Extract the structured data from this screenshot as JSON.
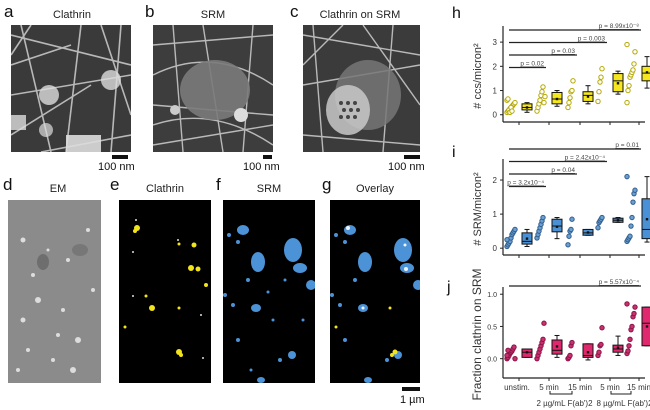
{
  "panels_top": [
    {
      "letter": "a",
      "title": "Clathrin",
      "scale": "100 nm"
    },
    {
      "letter": "b",
      "title": "SRM",
      "scale": "100 nm"
    },
    {
      "letter": "c",
      "title": "Clathrin on SRM",
      "scale": "100 nm"
    }
  ],
  "panels_bottom": [
    {
      "letter": "d",
      "title": "EM"
    },
    {
      "letter": "e",
      "title": "Clathrin"
    },
    {
      "letter": "f",
      "title": "SRM"
    },
    {
      "letter": "g",
      "title": "Overlay"
    }
  ],
  "bottom_scale": "1 µm",
  "colors": {
    "yellow": "#f5e61e",
    "blue": "#4a90d4",
    "pink": "#e0286e",
    "clathrin_overlay": "#f2e41a",
    "srm_overlay": "#4c92d6"
  },
  "x_axis": {
    "categories": [
      "unstim.",
      "5 min",
      "15 min",
      "5 min",
      "15 min"
    ],
    "groups": [
      {
        "label": "2 µg/mL F(ab')2"
      },
      {
        "label": "8 µg/mL F(ab')2"
      }
    ]
  },
  "chart_data": [
    {
      "panel": "h",
      "type": "box",
      "ylabel": "# ccs/micron²",
      "ylim": [
        -0.3,
        3.5
      ],
      "yticks": [
        "0",
        "1",
        "2",
        "3"
      ],
      "categories": [
        "unstim.",
        "5 min (2 µg/mL)",
        "15 min (2 µg/mL)",
        "5 min (8 µg/mL)",
        "15 min (8 µg/mL)"
      ],
      "boxes": [
        {
          "q1": 0.2,
          "median": 0.3,
          "q3": 0.45,
          "min": 0.1,
          "max": 0.5,
          "mean": 0.3
        },
        {
          "q1": 0.45,
          "median": 0.65,
          "q3": 0.92,
          "min": 0.35,
          "max": 1.0,
          "mean": 0.65
        },
        {
          "q1": 0.55,
          "median": 0.8,
          "q3": 0.95,
          "min": 0.45,
          "max": 1.2,
          "mean": 0.75
        },
        {
          "q1": 0.95,
          "median": 1.4,
          "q3": 1.7,
          "min": 0.85,
          "max": 1.8,
          "mean": 1.3
        },
        {
          "q1": 1.4,
          "median": 1.72,
          "q3": 2.0,
          "min": 1.1,
          "max": 2.4,
          "mean": 1.75
        }
      ],
      "points": [
        [
          0.1,
          0.15,
          0.2,
          0.25,
          0.3,
          0.35,
          0.4,
          0.45,
          0.5,
          0.6,
          0.65,
          0.2,
          0.1,
          0.3,
          0.15
        ],
        [
          0.15,
          0.3,
          0.45,
          0.6,
          0.8,
          0.95,
          1.15,
          0.5,
          0.75
        ],
        [
          0.3,
          0.5,
          0.7,
          0.95,
          1.0,
          1.4
        ],
        [
          0.55,
          0.95,
          1.35,
          1.55,
          1.9
        ],
        [
          0.5,
          1.0,
          1.2,
          1.55,
          1.65,
          1.75,
          1.85,
          2.1,
          2.6,
          2.9
        ]
      ],
      "comparisons": [
        {
          "label": "p = 0.02",
          "to": 1
        },
        {
          "label": "p = 0.03",
          "to": 2
        },
        {
          "label": "p = 0.003",
          "to": 3
        },
        {
          "label": "p = 8.99x10⁻⁸",
          "to": 4
        }
      ]
    },
    {
      "panel": "i",
      "type": "box",
      "ylabel": "# SRM/micron²",
      "ylim": [
        -0.2,
        2.5
      ],
      "yticks": [
        "0",
        "1",
        "2"
      ],
      "categories": [
        "unstim.",
        "5 min (2 µg/mL)",
        "15 min (2 µg/mL)",
        "5 min (8 µg/mL)",
        "15 min (8 µg/mL)"
      ],
      "boxes": [
        {
          "q1": 0.12,
          "median": 0.2,
          "q3": 0.45,
          "min": 0.05,
          "max": 0.55,
          "mean": 0.28
        },
        {
          "q1": 0.48,
          "median": 0.65,
          "q3": 0.85,
          "min": 0.28,
          "max": 0.9,
          "mean": 0.63
        },
        {
          "q1": 0.38,
          "median": 0.45,
          "q3": 0.55,
          "min": 0.38,
          "max": 0.55,
          "mean": 0.46
        },
        {
          "q1": 0.76,
          "median": 0.82,
          "q3": 0.88,
          "min": 0.76,
          "max": 0.9,
          "mean": 0.82
        },
        {
          "q1": 0.28,
          "median": 0.55,
          "q3": 1.45,
          "min": 0.18,
          "max": 2.1,
          "mean": 0.85
        }
      ],
      "points": [
        [
          0.05,
          0.1,
          0.15,
          0.2,
          0.3,
          0.4,
          0.45,
          0.5,
          0.55,
          0.25
        ],
        [
          0.3,
          0.4,
          0.5,
          0.6,
          0.7,
          0.8,
          0.9
        ],
        [
          0.1,
          0.35,
          0.5,
          0.55,
          0.85
        ],
        [
          0.6,
          0.75,
          0.8,
          0.85,
          0.9
        ],
        [
          0.2,
          0.25,
          0.3,
          0.35,
          0.65,
          0.9,
          1.35,
          1.6,
          1.7,
          2.1
        ]
      ],
      "comparisons": [
        {
          "label": "p = 3.2x10⁻⁴",
          "to": 1
        },
        {
          "label": "p = 0.04",
          "to": 2
        },
        {
          "label": "p = 2.42x10⁻⁴",
          "to": 3
        },
        {
          "label": "p = 0.01",
          "to": 4
        }
      ]
    },
    {
      "panel": "j",
      "type": "box",
      "ylabel": "Fraction clathrin on SRM",
      "ylim": [
        -0.3,
        1.05
      ],
      "yticks": [
        "0.0",
        "0.5",
        "1.0"
      ],
      "categories": [
        "unstim.",
        "5 min (2 µg/mL)",
        "15 min (2 µg/mL)",
        "5 min (8 µg/mL)",
        "15 min (8 µg/mL)"
      ],
      "boxes": [
        {
          "q1": 0.02,
          "median": 0.1,
          "q3": 0.15,
          "min": 0.02,
          "max": 0.15,
          "mean": 0.1
        },
        {
          "q1": 0.07,
          "median": 0.13,
          "q3": 0.29,
          "min": 0.02,
          "max": 0.36,
          "mean": 0.19
        },
        {
          "q1": 0.02,
          "median": 0.05,
          "q3": 0.23,
          "min": -0.02,
          "max": 0.23,
          "mean": 0.1
        },
        {
          "q1": 0.1,
          "median": 0.15,
          "q3": 0.21,
          "min": 0.05,
          "max": 0.35,
          "mean": 0.17
        },
        {
          "q1": 0.2,
          "median": 0.55,
          "q3": 0.8,
          "min": 0.2,
          "max": 0.8,
          "mean": 0.5
        }
      ],
      "points": [
        [
          0.0,
          0.02,
          0.05,
          0.08,
          0.1,
          0.12,
          0.15,
          0.18,
          0.0,
          0.05,
          0.13
        ],
        [
          0.0,
          0.05,
          0.1,
          0.15,
          0.2,
          0.25,
          0.3,
          0.55
        ],
        [
          0.0,
          0.02,
          0.05,
          0.2,
          0.25
        ],
        [
          0.05,
          0.1,
          0.2,
          0.22,
          0.48
        ],
        [
          0.08,
          0.12,
          0.2,
          0.3,
          0.45,
          0.5,
          0.65,
          0.7,
          0.8,
          0.85
        ]
      ],
      "comparisons": [
        {
          "label": "p = 5.57x10⁻⁴",
          "to": 4
        }
      ]
    }
  ]
}
